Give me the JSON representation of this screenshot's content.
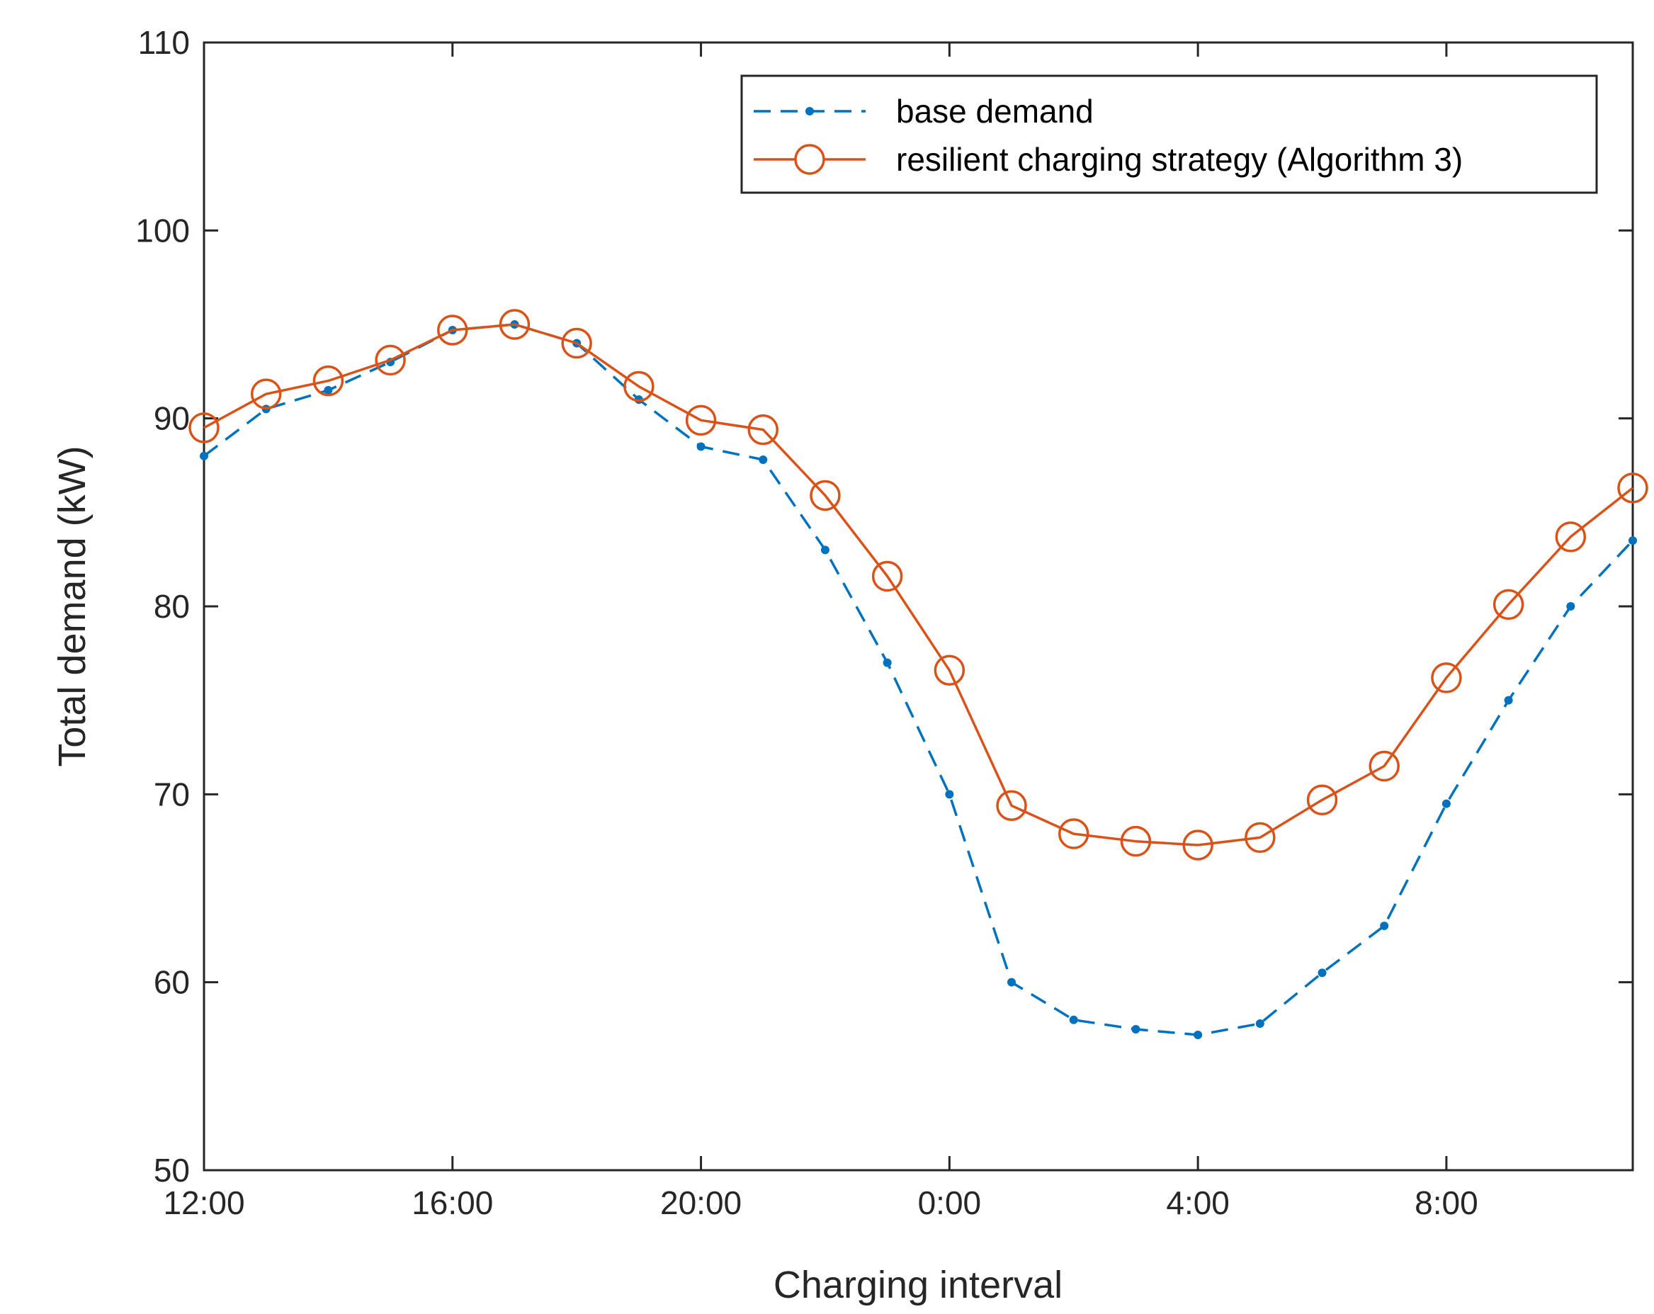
{
  "chart_data": {
    "type": "line",
    "title": "",
    "xlabel": "Charging interval",
    "ylabel": "Total demand (kW)",
    "x": [
      0,
      1,
      2,
      3,
      4,
      5,
      6,
      7,
      8,
      9,
      10,
      11,
      12,
      13,
      14,
      15,
      16,
      17,
      18,
      19,
      20,
      21,
      22,
      23
    ],
    "xlim": [
      0,
      23
    ],
    "ylim": [
      50,
      110
    ],
    "xticks": [
      {
        "x": 0,
        "label": "12:00"
      },
      {
        "x": 4,
        "label": "16:00"
      },
      {
        "x": 8,
        "label": "20:00"
      },
      {
        "x": 12,
        "label": "0:00"
      },
      {
        "x": 16,
        "label": "4:00"
      },
      {
        "x": 20,
        "label": "8:00"
      }
    ],
    "yticks": [
      {
        "y": 50,
        "label": "50"
      },
      {
        "y": 60,
        "label": "60"
      },
      {
        "y": 70,
        "label": "70"
      },
      {
        "y": 80,
        "label": "80"
      },
      {
        "y": 90,
        "label": "90"
      },
      {
        "y": 100,
        "label": "100"
      },
      {
        "y": 110,
        "label": "110"
      }
    ],
    "grid": false,
    "legend_position": "top-right",
    "series": [
      {
        "name": "base demand",
        "color": "#0072BD",
        "style": "dashed",
        "marker": "dot",
        "values": [
          88.0,
          90.5,
          91.5,
          93.0,
          94.7,
          95.0,
          94.0,
          91.0,
          88.5,
          87.8,
          83.0,
          77.0,
          70.0,
          60.0,
          58.0,
          57.5,
          57.2,
          57.8,
          60.5,
          63.0,
          69.5,
          75.0,
          80.0,
          83.5
        ]
      },
      {
        "name": "resilient charging strategy (Algorithm 3)",
        "color": "#D95319",
        "style": "solid",
        "marker": "circle",
        "values": [
          89.5,
          91.3,
          92.0,
          93.1,
          94.7,
          95.0,
          94.0,
          91.7,
          89.9,
          89.4,
          85.9,
          81.6,
          76.6,
          69.4,
          67.9,
          67.5,
          67.3,
          67.7,
          69.7,
          71.5,
          76.2,
          80.1,
          83.7,
          86.3
        ]
      }
    ]
  }
}
